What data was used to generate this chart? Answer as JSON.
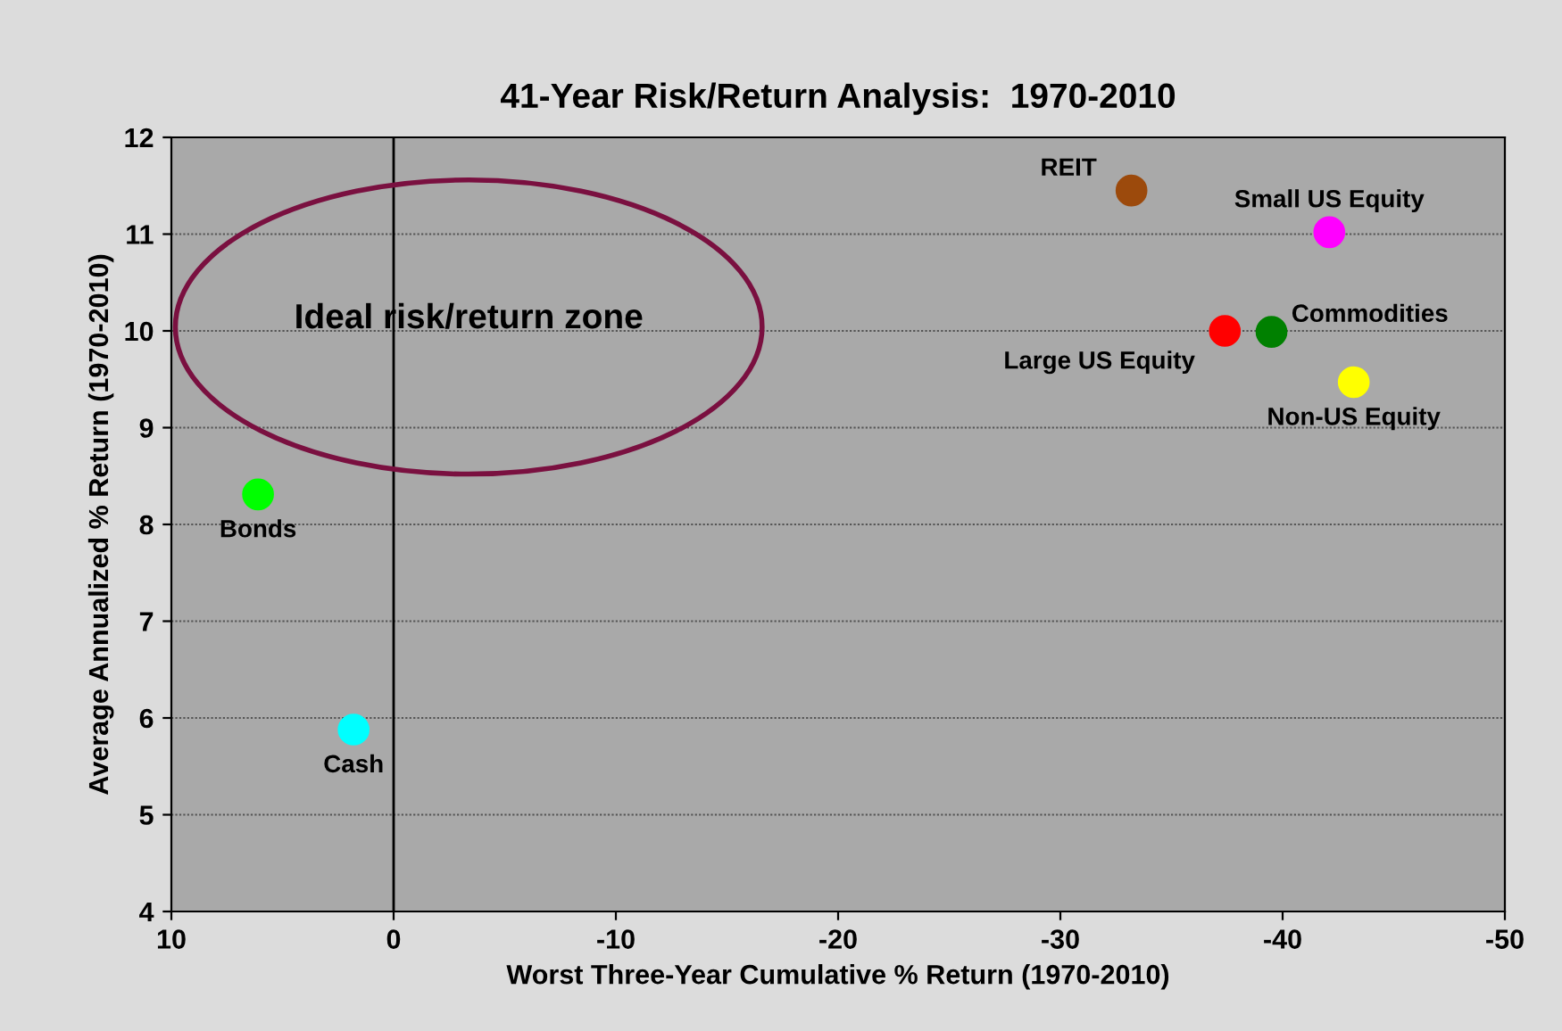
{
  "chart_data": {
    "type": "scatter",
    "title": "41-Year Risk/Return Analysis:  1970-2010",
    "xlabel": "Worst Three-Year Cumulative % Return (1970-2010)",
    "ylabel": "Average Annualized % Return (1970-2010)",
    "xlim": [
      10,
      -50
    ],
    "xticks": [
      10,
      0,
      -10,
      -20,
      -30,
      -40,
      -50
    ],
    "ylim": [
      4,
      12
    ],
    "yticks": [
      4,
      5,
      6,
      7,
      8,
      9,
      10,
      11,
      12
    ],
    "grid": "y",
    "marker": "circle",
    "legend": false,
    "series": [
      {
        "name": "REIT",
        "color": "#9c4a0c",
        "x": [
          -33.2
        ],
        "values": [
          11.45
        ]
      },
      {
        "name": "Small US Equity",
        "color": "#ff00ff",
        "x": [
          -42.1
        ],
        "values": [
          11.02
        ]
      },
      {
        "name": "Large US Equity",
        "color": "#ff0000",
        "x": [
          -37.4
        ],
        "values": [
          10.0
        ]
      },
      {
        "name": "Commodities",
        "color": "#008000",
        "x": [
          -39.5
        ],
        "values": [
          9.99
        ]
      },
      {
        "name": "Non-US Equity",
        "color": "#ffff00",
        "x": [
          -43.2
        ],
        "values": [
          9.47
        ]
      },
      {
        "name": "Bonds",
        "color": "#00ff00",
        "x": [
          6.1
        ],
        "values": [
          8.31
        ]
      },
      {
        "name": "Cash",
        "color": "#00ffff",
        "x": [
          1.8
        ],
        "values": [
          5.88
        ]
      }
    ],
    "ref_lines": [
      {
        "axis": "x",
        "value": 0,
        "color": "#000000"
      }
    ],
    "annotations": [
      "Ideal risk/return zone"
    ]
  }
}
